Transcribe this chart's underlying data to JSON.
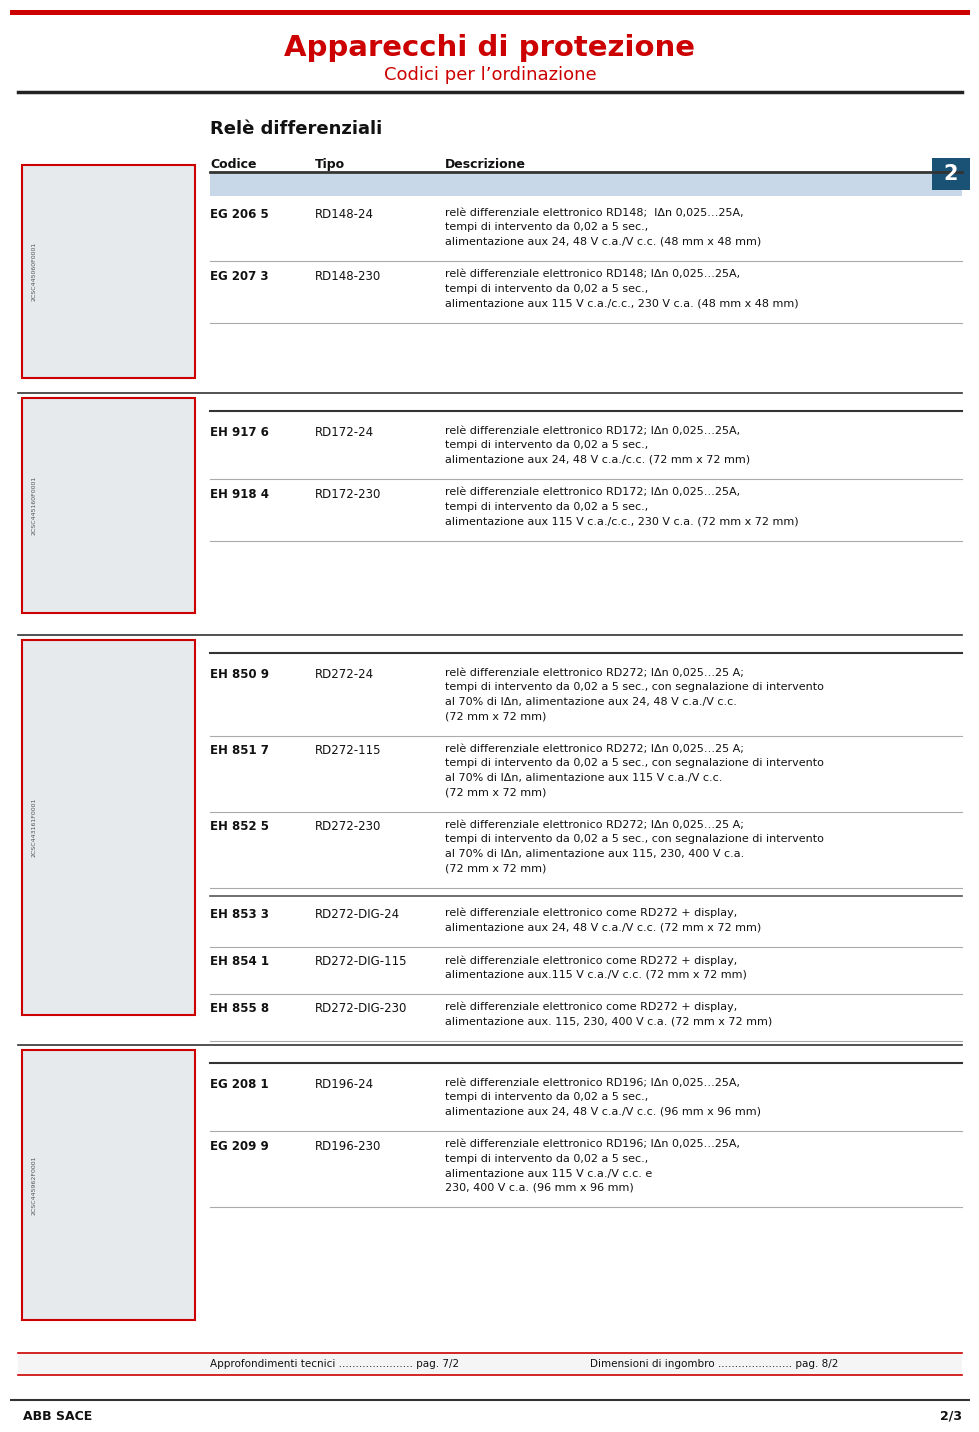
{
  "page_title": "Apparecchi di protezione",
  "page_subtitle": "Codici per l’ordinazione",
  "bg_color": "#ffffff",
  "title_color": "#cc0000",
  "subtitle_color": "#cc0000",
  "section_title": "Relè differenziali",
  "col_headers": [
    "Codice",
    "Tipo",
    "Descrizione"
  ],
  "table_header_bg": "#c8d8e8",
  "section_num": "2",
  "section_num_bg": "#1a5276",
  "sections": [
    {
      "image_label": "2CSC445060F0001",
      "rows": [
        {
          "codice": "EG 206 5",
          "tipo": "RD148-24",
          "desc_lines": [
            "relè differenziale elettronico RD148;  IΔn 0,025…25A,",
            "tempi di intervento da 0,02 a 5 sec.,",
            "alimentazione aux 24, 48 V c.a./V c.c. (48 mm x 48 mm)"
          ]
        },
        {
          "codice": "EG 207 3",
          "tipo": "RD148-230",
          "desc_lines": [
            "relè differenziale elettronico RD148; IΔn 0,025…25A,",
            "tempi di intervento da 0,02 a 5 sec.,",
            "alimentazione aux 115 V c.a./c.c., 230 V c.a. (48 mm x 48 mm)"
          ]
        }
      ]
    },
    {
      "image_label": "2CSC445160F0001",
      "rows": [
        {
          "codice": "EH 917 6",
          "tipo": "RD172-24",
          "desc_lines": [
            "relè differenziale elettronico RD172; IΔn 0,025…25A,",
            "tempi di intervento da 0,02 a 5 sec.,",
            "alimentazione aux 24, 48 V c.a./c.c. (72 mm x 72 mm)"
          ]
        },
        {
          "codice": "EH 918 4",
          "tipo": "RD172-230",
          "desc_lines": [
            "relè differenziale elettronico RD172; IΔn 0,025…25A,",
            "tempi di intervento da 0,02 a 5 sec.,",
            "alimentazione aux 115 V c.a./c.c., 230 V c.a. (72 mm x 72 mm)"
          ]
        }
      ]
    },
    {
      "image_label": "2CSC443161F0001",
      "rows": [
        {
          "codice": "EH 850 9",
          "tipo": "RD272-24",
          "desc_lines": [
            "relè differenziale elettronico RD272; IΔn 0,025…25 A;",
            "tempi di intervento da 0,02 a 5 sec., con segnalazione di intervento",
            "al 70% di IΔn, alimentazione aux 24, 48 V c.a./V c.c.",
            "(72 mm x 72 mm)"
          ]
        },
        {
          "codice": "EH 851 7",
          "tipo": "RD272-115",
          "desc_lines": [
            "relè differenziale elettronico RD272; IΔn 0,025…25 A;",
            "tempi di intervento da 0,02 a 5 sec., con segnalazione di intervento",
            "al 70% di IΔn, alimentazione aux 115 V c.a./V c.c.",
            "(72 mm x 72 mm)"
          ]
        },
        {
          "codice": "EH 852 5",
          "tipo": "RD272-230",
          "desc_lines": [
            "relè differenziale elettronico RD272; IΔn 0,025…25 A;",
            "tempi di intervento da 0,02 a 5 sec., con segnalazione di intervento",
            "al 70% di IΔn, alimentazione aux 115, 230, 400 V c.a.",
            "(72 mm x 72 mm)"
          ]
        },
        {
          "codice": "EH 853 3",
          "tipo": "RD272-DIG-24",
          "desc_lines": [
            "relè differenziale elettronico come RD272 + display,",
            "alimentazione aux 24, 48 V c.a./V c.c. (72 mm x 72 mm)"
          ]
        },
        {
          "codice": "EH 854 1",
          "tipo": "RD272-DIG-115",
          "desc_lines": [
            "relè differenziale elettronico come RD272 + display,",
            "alimentazione aux.115 V c.a./V c.c. (72 mm x 72 mm)"
          ]
        },
        {
          "codice": "EH 855 8",
          "tipo": "RD272-DIG-230",
          "desc_lines": [
            "relè differenziale elettronico come RD272 + display,",
            "alimentazione aux. 115, 230, 400 V c.a. (72 mm x 72 mm)"
          ]
        }
      ]
    },
    {
      "image_label": "2CSC445962F0001",
      "rows": [
        {
          "codice": "EG 208 1",
          "tipo": "RD196-24",
          "desc_lines": [
            "relè differenziale elettronico RD196; IΔn 0,025…25A,",
            "tempi di intervento da 0,02 a 5 sec.,",
            "alimentazione aux 24, 48 V c.a./V c.c. (96 mm x 96 mm)"
          ]
        },
        {
          "codice": "EG 209 9",
          "tipo": "RD196-230",
          "desc_lines": [
            "relè differenziale elettronico RD196; IΔn 0,025…25A,",
            "tempi di intervento da 0,02 a 5 sec.,",
            "alimentazione aux 115 V c.a./V c.c. e",
            "230, 400 V c.a. (96 mm x 96 mm)"
          ]
        }
      ]
    }
  ],
  "footer_left": "Approfondimenti tecnici ...................... pag. 7/2",
  "footer_right": "Dimensioni di ingombro ...................... pag. 8/2",
  "footer_brand": "ABB SACE",
  "footer_page": "2/3"
}
